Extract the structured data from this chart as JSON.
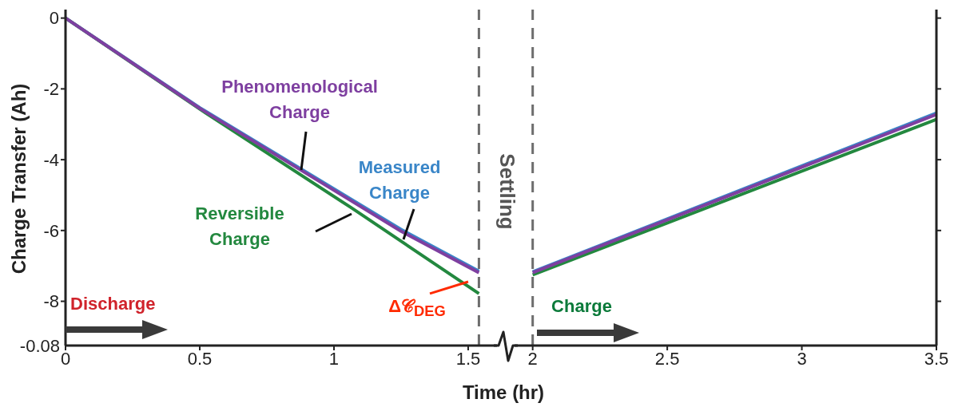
{
  "chart_data": [
    {
      "type": "line",
      "xlabel": "Time (hr)",
      "ylabel": "Charge Transfer (Ah)",
      "xlim": [
        0,
        1.64
      ],
      "xticks": [
        0,
        0.5,
        1,
        1.5
      ],
      "ylim": [
        -9.25,
        0.24
      ],
      "yticks": [
        -8,
        -6,
        -4,
        -2,
        0
      ],
      "series": [
        {
          "name": "Measured Charge",
          "color": "#3a86c8",
          "x": [
            0,
            0.5,
            1.25,
            1.54
          ],
          "values": [
            0,
            -2.53,
            -5.97,
            -7.15
          ]
        },
        {
          "name": "Reversible Charge",
          "color": "#23883f",
          "x": [
            0,
            0.5,
            1.065,
            1.54
          ],
          "values": [
            0,
            -2.57,
            -5.36,
            -7.78
          ]
        },
        {
          "name": "Phenomenological Charge",
          "color": "#7e3fa0",
          "x": [
            0,
            0.5,
            1.25,
            1.54
          ],
          "values": [
            0,
            -2.55,
            -6.02,
            -7.19
          ]
        }
      ],
      "ref_lines": [
        {
          "axis": "x",
          "value": 1.54,
          "color": "#6d6d6d",
          "line_style": "dashed"
        }
      ],
      "annotations": [
        "Discharge",
        {
          "text": "Δ𝒞$_{DEG}$",
          "x": 1.5,
          "y": -7.45
        },
        "Settling",
        "-0.08"
      ],
      "legend": false,
      "grid": false
    },
    {
      "type": "line",
      "tick_labels": "x",
      "xlim": [
        1.9,
        3.5
      ],
      "xticks": [
        2,
        2.5,
        3,
        3.5
      ],
      "ylim": [
        -9.25,
        0.24
      ],
      "yticks": [
        -8,
        -6,
        -4,
        -2,
        0
      ],
      "series": [
        {
          "color": "#3a86c8",
          "x": [
            2,
            3.5
          ],
          "values": [
            -7.17,
            -2.68
          ]
        },
        {
          "color": "#23883f",
          "x": [
            2,
            3.5
          ],
          "values": [
            -7.25,
            -2.86
          ]
        },
        {
          "color": "#7e3fa0",
          "x": [
            2,
            3.5
          ],
          "values": [
            -7.19,
            -2.72
          ]
        }
      ],
      "ref_lines": [
        {
          "axis": "x",
          "value": 2,
          "color": "#6d6d6d",
          "line_style": "dashed"
        }
      ],
      "annotations": [
        "Charge"
      ],
      "legend": false,
      "grid": false
    }
  ]
}
